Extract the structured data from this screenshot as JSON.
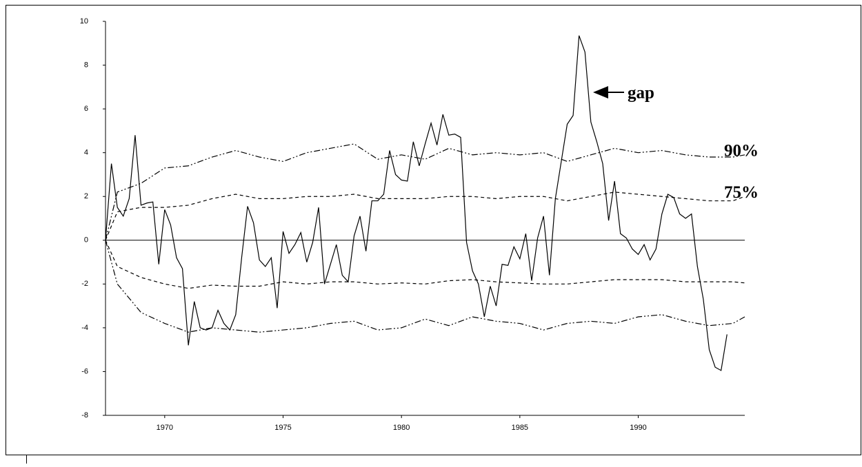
{
  "chart_data": {
    "type": "line",
    "annotation": "gap",
    "xlim": [
      1967.5,
      1994.5
    ],
    "xticks": [
      1970,
      1975,
      1980,
      1985,
      1990
    ],
    "ylim": [
      -8,
      10
    ],
    "yticks": [
      -8,
      -6,
      -4,
      -2,
      0,
      2,
      4,
      6,
      8,
      10
    ],
    "series": [
      {
        "color": "#000000",
        "dash": "solid",
        "x": [
          1967.5,
          1967.75,
          1968,
          1968.25,
          1968.5,
          1968.75,
          1969,
          1969.25,
          1969.5,
          1969.75,
          1970,
          1970.25,
          1970.5,
          1970.75,
          1971,
          1971.25,
          1971.5,
          1971.75,
          1972,
          1972.25,
          1972.5,
          1972.75,
          1973,
          1973.25,
          1973.5,
          1973.75,
          1974,
          1974.25,
          1974.5,
          1974.75,
          1975,
          1975.25,
          1975.5,
          1975.75,
          1976,
          1976.25,
          1976.5,
          1976.75,
          1977,
          1977.25,
          1977.5,
          1977.75,
          1978,
          1978.25,
          1978.5,
          1978.75,
          1979,
          1979.25,
          1979.5,
          1979.75,
          1980,
          1980.25,
          1980.5,
          1980.75,
          1981,
          1981.25,
          1981.5,
          1981.75,
          1982,
          1982.25,
          1982.5,
          1982.75,
          1983,
          1983.25,
          1983.5,
          1983.75,
          1984,
          1984.25,
          1984.5,
          1984.75,
          1985,
          1985.25,
          1985.5,
          1985.75,
          1986,
          1986.25,
          1986.5,
          1986.75,
          1987,
          1987.25,
          1987.5,
          1987.75,
          1988,
          1988.25,
          1988.5,
          1988.75,
          1989,
          1989.25,
          1989.5,
          1989.75,
          1990,
          1990.25,
          1990.5,
          1990.75,
          1991,
          1991.25,
          1991.5,
          1991.75,
          1992,
          1992.25,
          1992.5,
          1992.75,
          1993,
          1993.25,
          1993.5,
          1993.75
        ],
        "values": [
          0,
          3.5,
          1.5,
          1.1,
          1.9,
          4.8,
          1.6,
          1.7,
          1.75,
          -1.1,
          1.4,
          0.7,
          -0.8,
          -1.3,
          -4.8,
          -2.8,
          -4.0,
          -4.1,
          -4.0,
          -3.2,
          -3.8,
          -4.1,
          -3.4,
          -0.8,
          1.55,
          0.8,
          -0.9,
          -1.2,
          -0.8,
          -3.1,
          0.4,
          -0.6,
          -0.2,
          0.35,
          -1.0,
          -0.1,
          1.5,
          -2.0,
          -1.1,
          -0.2,
          -1.6,
          -1.9,
          0.2,
          1.1,
          -0.5,
          1.8,
          1.8,
          2.1,
          4.1,
          3.0,
          2.75,
          2.7,
          4.5,
          3.4,
          4.4,
          5.35,
          4.35,
          5.75,
          4.8,
          4.85,
          4.7,
          -0.1,
          -1.4,
          -2.0,
          -3.5,
          -2.1,
          -3.0,
          -1.1,
          -1.15,
          -0.3,
          -0.85,
          0.3,
          -1.85,
          0.1,
          1.1,
          -1.6,
          1.9,
          3.6,
          5.3,
          5.7,
          9.35,
          8.6,
          5.4,
          4.5,
          3.5,
          0.9,
          2.7,
          0.3,
          0.1,
          -0.4,
          -0.65,
          -0.2,
          -0.9,
          -0.4,
          1.2,
          2.1,
          1.95,
          1.2,
          1.0,
          1.2,
          -1.2,
          -2.7,
          -5.0,
          -5.8,
          -5.95,
          -4.3
        ]
      },
      {
        "name": "90%",
        "color": "#000000",
        "dash": "dashdotdot",
        "x": [
          1967.5,
          1968,
          1969,
          1970,
          1971,
          1972,
          1973,
          1974,
          1975,
          1976,
          1977,
          1978,
          1979,
          1980,
          1981,
          1982,
          1983,
          1984,
          1985,
          1986,
          1987,
          1988,
          1989,
          1990,
          1991,
          1992,
          1993,
          1994,
          1994.5
        ],
        "values": [
          0,
          2.2,
          2.6,
          3.3,
          3.4,
          3.8,
          4.1,
          3.8,
          3.6,
          4.0,
          4.2,
          4.4,
          3.7,
          3.9,
          3.7,
          4.2,
          3.9,
          4.0,
          3.9,
          4.0,
          3.6,
          3.9,
          4.2,
          4.0,
          4.1,
          3.9,
          3.8,
          3.8,
          3.9
        ]
      },
      {
        "name": "75%",
        "color": "#000000",
        "dash": "dashed",
        "x": [
          1967.5,
          1968,
          1969,
          1970,
          1971,
          1972,
          1973,
          1974,
          1975,
          1976,
          1977,
          1978,
          1979,
          1980,
          1981,
          1982,
          1983,
          1984,
          1985,
          1986,
          1987,
          1988,
          1989,
          1990,
          1991,
          1992,
          1993,
          1994,
          1994.5
        ],
        "values": [
          0,
          1.3,
          1.5,
          1.5,
          1.6,
          1.9,
          2.1,
          1.9,
          1.9,
          2.0,
          2.0,
          2.1,
          1.9,
          1.9,
          1.9,
          2.0,
          2.0,
          1.9,
          2.0,
          2.0,
          1.8,
          2.0,
          2.2,
          2.1,
          2.0,
          1.9,
          1.8,
          1.8,
          2.0
        ]
      },
      {
        "color": "#000000",
        "dash": "dashed",
        "x": [
          1967.5,
          1968,
          1969,
          1970,
          1971,
          1972,
          1973,
          1974,
          1975,
          1976,
          1977,
          1978,
          1979,
          1980,
          1981,
          1982,
          1983,
          1984,
          1985,
          1986,
          1987,
          1988,
          1989,
          1990,
          1991,
          1992,
          1993,
          1994,
          1994.5
        ],
        "values": [
          0,
          -1.2,
          -1.7,
          -2.0,
          -2.2,
          -2.05,
          -2.1,
          -2.1,
          -1.9,
          -2.0,
          -1.9,
          -1.9,
          -2.0,
          -1.95,
          -2.0,
          -1.85,
          -1.8,
          -1.9,
          -1.95,
          -2.0,
          -2.0,
          -1.9,
          -1.8,
          -1.8,
          -1.8,
          -1.9,
          -1.9,
          -1.9,
          -1.95
        ]
      },
      {
        "color": "#000000",
        "dash": "dashdotdot",
        "x": [
          1967.5,
          1968,
          1969,
          1970,
          1971,
          1972,
          1973,
          1974,
          1975,
          1976,
          1977,
          1978,
          1979,
          1980,
          1981,
          1982,
          1983,
          1984,
          1985,
          1986,
          1987,
          1988,
          1989,
          1990,
          1991,
          1992,
          1993,
          1994,
          1994.5
        ],
        "values": [
          0,
          -2.0,
          -3.3,
          -3.8,
          -4.2,
          -4.0,
          -4.1,
          -4.2,
          -4.1,
          -4.0,
          -3.8,
          -3.7,
          -4.1,
          -4.0,
          -3.6,
          -3.9,
          -3.5,
          -3.7,
          -3.8,
          -4.1,
          -3.8,
          -3.7,
          -3.8,
          -3.5,
          -3.4,
          -3.7,
          -3.9,
          -3.8,
          -3.5
        ]
      }
    ]
  }
}
